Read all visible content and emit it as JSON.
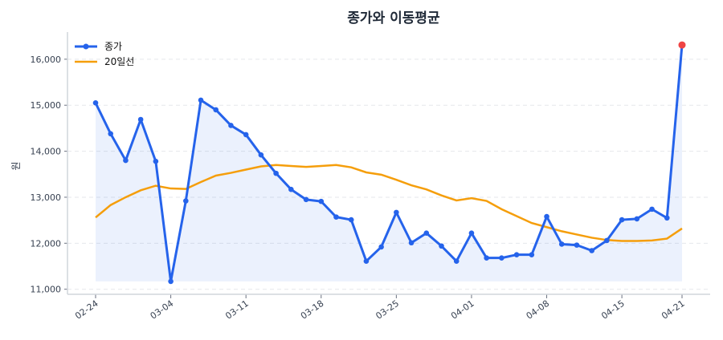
{
  "chart_data": {
    "type": "line",
    "title": "종가와 이동평균",
    "xlabel": "",
    "ylabel": "원",
    "ylim": [
      10890,
      16590
    ],
    "yticks": [
      11000,
      12000,
      13000,
      14000,
      15000,
      16000
    ],
    "ytick_labels": [
      "11,000",
      "12,000",
      "13,000",
      "14,000",
      "15,000",
      "16,000"
    ],
    "grid": "horizontal dashed",
    "legend": "top-left",
    "x": [
      "02-24",
      "02-25",
      "02-26",
      "02-27",
      "02-28",
      "03-04",
      "03-05",
      "03-06",
      "03-07",
      "03-10",
      "03-11",
      "03-12",
      "03-13",
      "03-14",
      "03-17",
      "03-18",
      "03-19",
      "03-20",
      "03-21",
      "03-24",
      "03-25",
      "03-26",
      "03-27",
      "03-28",
      "03-31",
      "04-01",
      "04-02",
      "04-03",
      "04-04",
      "04-07",
      "04-08",
      "04-09",
      "04-10",
      "04-11",
      "04-14",
      "04-15",
      "04-16",
      "04-17",
      "04-18",
      "04-21"
    ],
    "xtick_labels": [
      "02-24",
      "03-04",
      "03-11",
      "03-18",
      "03-25",
      "04-01",
      "04-08",
      "04-15",
      "04-21"
    ],
    "series": [
      {
        "name": "종가",
        "color": "#2563eb",
        "fill": "#2563eb",
        "last_point_color": "#ef4444",
        "values": [
          15050,
          14380,
          13800,
          14690,
          13780,
          11170,
          12920,
          15110,
          14900,
          14560,
          14360,
          13920,
          13520,
          13170,
          12950,
          12910,
          12570,
          12510,
          11610,
          11920,
          12670,
          12010,
          12220,
          11940,
          11610,
          12220,
          11680,
          11680,
          11750,
          11750,
          12580,
          11980,
          11960,
          11840,
          12060,
          12510,
          12530,
          12740,
          12550,
          16310
        ]
      },
      {
        "name": "20일선",
        "color": "#f59e0b",
        "values": [
          12560,
          12830,
          13000,
          13150,
          13250,
          13190,
          13180,
          13330,
          13470,
          13530,
          13600,
          13670,
          13700,
          13680,
          13660,
          13680,
          13700,
          13650,
          13540,
          13490,
          13380,
          13260,
          13170,
          13040,
          12930,
          12980,
          12920,
          12740,
          12590,
          12440,
          12350,
          12260,
          12190,
          12120,
          12070,
          12050,
          12050,
          12060,
          12100,
          12320
        ]
      }
    ]
  }
}
